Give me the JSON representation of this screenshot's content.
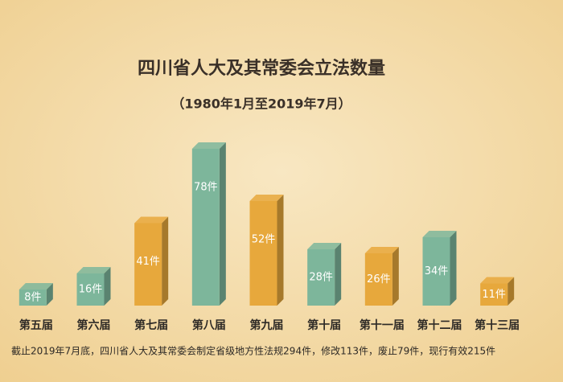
{
  "chart_data": {
    "type": "bar3d",
    "title": "四川省人大及其常委会立法数量",
    "subtitle": "（1980年1月至2019年7月）",
    "categories": [
      "第五届",
      "第六届",
      "第七届",
      "第八届",
      "第九届",
      "第十届",
      "第十一届",
      "第十二届",
      "第十三届"
    ],
    "values": [
      8,
      16,
      41,
      78,
      52,
      28,
      26,
      34,
      11
    ],
    "value_labels": [
      "8件",
      "16件",
      "41件",
      "78件",
      "52件",
      "28件",
      "26件",
      "34件",
      "11件"
    ],
    "colors": [
      "#7db69b",
      "#7db69b",
      "#e7a83c",
      "#7db69b",
      "#e7a83c",
      "#7db69b",
      "#e7a83c",
      "#7db69b",
      "#e7a83c"
    ],
    "note": "截止2019年7月底，四川省人大及其常委会制定省级地方性法规294件，修改113件，废止79件，现行有效215件"
  }
}
